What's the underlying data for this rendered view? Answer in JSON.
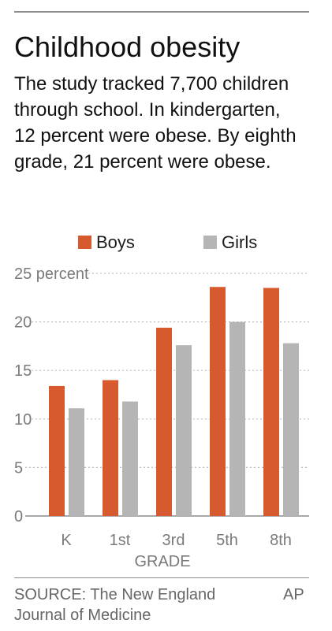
{
  "title": "Childhood obesity",
  "subtitle": "The study tracked 7,700 children through school. In kindergarten, 12 percent were obese. By eighth grade, 21 percent were obese.",
  "source": {
    "line1": "SOURCE: The New England",
    "line2": "Journal of Medicine",
    "credit": "AP"
  },
  "colors": {
    "boys": "#d65a2d",
    "girls": "#b5b5b5",
    "axis_text": "#7a7a7a",
    "grid": "#bdbdbd"
  },
  "chart_data": {
    "type": "bar",
    "categories": [
      "K",
      "1st",
      "3rd",
      "5th",
      "8th"
    ],
    "series": [
      {
        "name": "Boys",
        "values": [
          13.4,
          14.0,
          19.4,
          23.6,
          23.5
        ]
      },
      {
        "name": "Girls",
        "values": [
          11.1,
          11.8,
          17.6,
          20.0,
          17.8
        ]
      }
    ],
    "y_ticks": [
      {
        "value": 0,
        "label": "0"
      },
      {
        "value": 5,
        "label": "5"
      },
      {
        "value": 10,
        "label": "10"
      },
      {
        "value": 15,
        "label": "15"
      },
      {
        "value": 20,
        "label": "20"
      },
      {
        "value": 25,
        "label": "25 percent"
      }
    ],
    "ylim": [
      0,
      25
    ],
    "xlabel": "GRADE",
    "ylabel": "",
    "grid": true,
    "legend_position": "top"
  }
}
